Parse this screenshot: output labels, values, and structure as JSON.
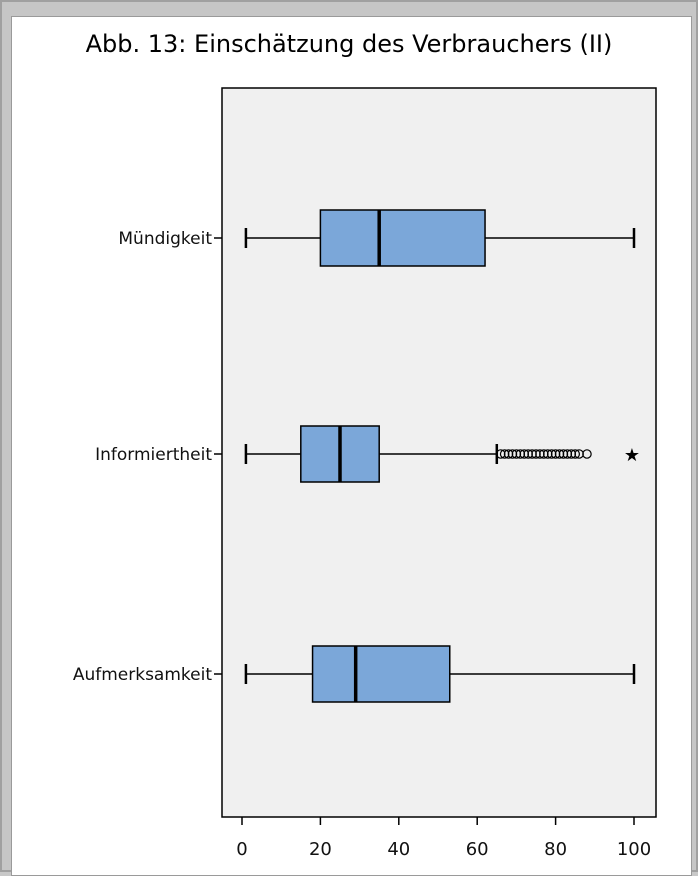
{
  "chart_data": {
    "type": "boxplot",
    "title": "Abb. 13: Einschätzung des Verbrauchers (II)",
    "orientation": "horizontal",
    "xlim": [
      -5,
      103
    ],
    "xticks": [
      0,
      20,
      40,
      60,
      80,
      100
    ],
    "categories": [
      "Mündigkeit",
      "Informiertheit",
      "Aufmerksamkeit"
    ],
    "boxes": [
      {
        "category": "Mündigkeit",
        "whisker_low": 1,
        "q1": 20,
        "median": 35,
        "q3": 62,
        "whisker_high": 100,
        "outliers": [],
        "extremes": []
      },
      {
        "category": "Informiertheit",
        "whisker_low": 1,
        "q1": 15,
        "median": 25,
        "q3": 35,
        "whisker_high": 65,
        "outliers": [
          66,
          67,
          68,
          69,
          70,
          71,
          72,
          73,
          74,
          75,
          76,
          77,
          78,
          79,
          80,
          81,
          82,
          83,
          84,
          85,
          86,
          88
        ],
        "extremes": [
          100
        ]
      },
      {
        "category": "Aufmerksamkeit",
        "whisker_low": 1,
        "q1": 18,
        "median": 29,
        "q3": 53,
        "whisker_high": 100,
        "outliers": [],
        "extremes": []
      }
    ],
    "colors": {
      "box_fill": "#7ba7d9",
      "plot_bg": "#f0f0f0",
      "line": "#000000"
    },
    "grid": false
  }
}
